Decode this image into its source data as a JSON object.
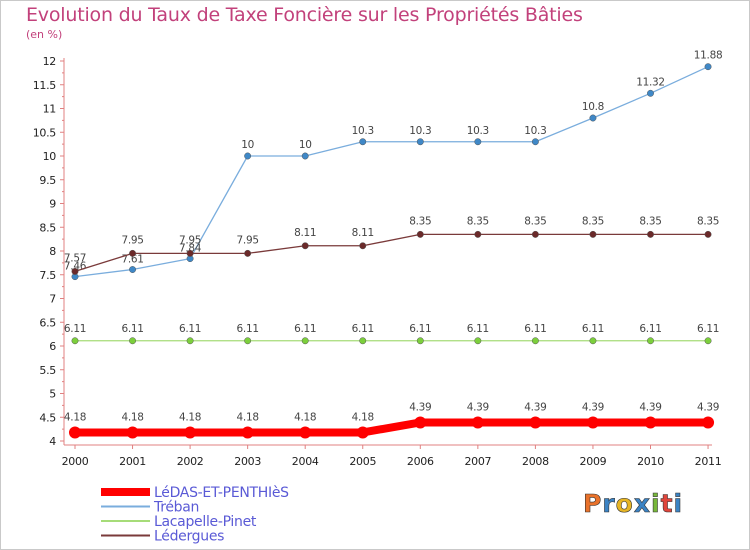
{
  "header": {
    "title": "Evolution du Taux de Taxe Foncière sur les Propriétés Bâties",
    "subtitle": "(en %)"
  },
  "brand": {
    "logo_text": "Proxiti",
    "logo_colors": [
      "#e9722b",
      "#3b83c4",
      "#e6b526",
      "#3b83c4",
      "#78b83a",
      "#e0463c",
      "#3b83c4"
    ]
  },
  "chart_data": {
    "type": "line",
    "title": "Evolution du Taux de Taxe Foncière sur les Propriétés Bâties",
    "ylabel": "(en %)",
    "xlabel": "",
    "categories": [
      "2000",
      "2001",
      "2002",
      "2003",
      "2004",
      "2005",
      "2006",
      "2007",
      "2008",
      "2009",
      "2010",
      "2011"
    ],
    "ylim": [
      4,
      12
    ],
    "yticks": [
      4,
      4.5,
      5,
      5.5,
      6,
      6.5,
      7,
      7.5,
      8,
      8.5,
      9,
      9.5,
      10,
      10.5,
      11,
      11.5,
      12
    ],
    "ytick_labels": [
      "4",
      "4.5",
      "5",
      "5.5",
      "6",
      "6.5",
      "7",
      "7.5",
      "8",
      "8.5",
      "9",
      "9.5",
      "10",
      "10.5",
      "11",
      "11.5",
      "12"
    ],
    "grid": false,
    "legend_position": "bottom-left",
    "series": [
      {
        "name": "LéDAS-ET-PENTHIèS",
        "color": "#ff0000",
        "marker_color": "#ff0000",
        "emphasis": true,
        "values": [
          4.18,
          4.18,
          4.18,
          4.18,
          4.18,
          4.18,
          4.39,
          4.39,
          4.39,
          4.39,
          4.39,
          4.39
        ],
        "labels": [
          "4.18",
          "4.18",
          "4.18",
          "4.18",
          "4.18",
          "4.18",
          "4.39",
          "4.39",
          "4.39",
          "4.39",
          "4.39",
          "4.39"
        ]
      },
      {
        "name": "Tréban",
        "color": "#7aaddd",
        "marker_color": "#3f88c7",
        "emphasis": false,
        "values": [
          7.46,
          7.61,
          7.84,
          10,
          10,
          10.3,
          10.3,
          10.3,
          10.3,
          10.8,
          11.32,
          11.88
        ],
        "labels": [
          "7.46",
          "7.61",
          "7.84",
          "10",
          "10",
          "10.3",
          "10.3",
          "10.3",
          "10.3",
          "10.8",
          "11.32",
          "11.88"
        ]
      },
      {
        "name": "Lacapelle-Pinet",
        "color": "#a6dc78",
        "marker_color": "#7ccf3c",
        "emphasis": false,
        "values": [
          6.11,
          6.11,
          6.11,
          6.11,
          6.11,
          6.11,
          6.11,
          6.11,
          6.11,
          6.11,
          6.11,
          6.11
        ],
        "labels": [
          "6.11",
          "6.11",
          "6.11",
          "6.11",
          "6.11",
          "6.11",
          "6.11",
          "6.11",
          "6.11",
          "6.11",
          "6.11",
          "6.11"
        ]
      },
      {
        "name": "Lédergues",
        "color": "#7a3a3a",
        "marker_color": "#6b2a2a",
        "emphasis": false,
        "values": [
          7.57,
          7.95,
          7.95,
          7.95,
          8.11,
          8.11,
          8.35,
          8.35,
          8.35,
          8.35,
          8.35,
          8.35
        ],
        "labels": [
          "7.57",
          "7.95",
          "7.95",
          "7.95",
          "8.11",
          "8.11",
          "8.35",
          "8.35",
          "8.35",
          "8.35",
          "8.35",
          "8.35"
        ]
      }
    ]
  }
}
